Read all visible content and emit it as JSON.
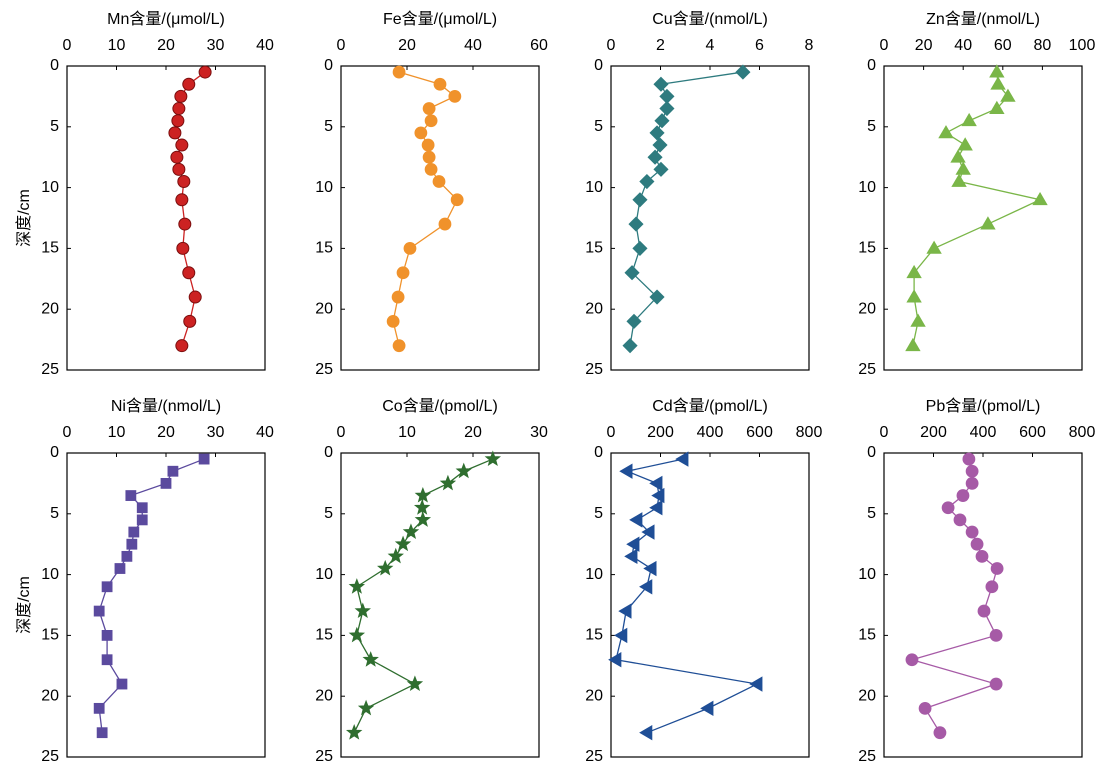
{
  "chart_data": [
    {
      "type": "line",
      "title": "Mn含量/(μmol/L)",
      "ylabel": "深度/cm",
      "color": "#cc2222",
      "marker": "sphere",
      "x": [
        27.9,
        24.6,
        23,
        22.6,
        22.4,
        21.8,
        23.2,
        22.2,
        22.6,
        23.6,
        23.2,
        23.8,
        23.4,
        24.6,
        25.9,
        24.8,
        23.2
      ],
      "y": [
        0.5,
        1.5,
        2.5,
        3.5,
        4.5,
        5.5,
        6.5,
        7.5,
        8.5,
        9.5,
        11,
        13,
        15,
        17,
        19,
        21,
        23
      ],
      "xlim": [
        0,
        40
      ],
      "xticks": [
        0,
        10,
        20,
        30,
        40
      ],
      "ylim": [
        0,
        25
      ],
      "yticks": [
        0,
        5,
        10,
        15,
        20,
        25
      ]
    },
    {
      "type": "line",
      "title": "Fe含量/(μmol/L)",
      "color": "#f0922b",
      "marker": "circle",
      "x": [
        17.6,
        30,
        34.5,
        26.7,
        27.3,
        24.2,
        26.4,
        26.7,
        27.3,
        29.7,
        35.2,
        31.5,
        20.9,
        18.8,
        17.3,
        15.8,
        17.6
      ],
      "y": [
        0.5,
        1.5,
        2.5,
        3.5,
        4.5,
        5.5,
        6.5,
        7.5,
        8.5,
        9.5,
        11,
        13,
        15,
        17,
        19,
        21,
        23
      ],
      "xlim": [
        0,
        60
      ],
      "xticks": [
        0,
        20,
        40,
        60
      ],
      "ylim": [
        0,
        25
      ],
      "yticks": [
        0,
        5,
        10,
        15,
        20,
        25
      ]
    },
    {
      "type": "line",
      "title": "Cu含量/(nmol/L)",
      "color": "#2e7b7f",
      "marker": "diamond",
      "x": [
        5.33,
        2.02,
        2.26,
        2.26,
        2.06,
        1.86,
        1.98,
        1.78,
        2.02,
        1.45,
        1.17,
        1.01,
        1.17,
        0.85,
        1.86,
        0.93,
        0.77
      ],
      "y": [
        0.5,
        1.5,
        2.5,
        3.5,
        4.5,
        5.5,
        6.5,
        7.5,
        8.5,
        9.5,
        11,
        13,
        15,
        17,
        19,
        21,
        23
      ],
      "xlim": [
        0,
        8
      ],
      "xticks": [
        0,
        2,
        4,
        6,
        8
      ],
      "ylim": [
        0,
        25
      ],
      "yticks": [
        0,
        5,
        10,
        15,
        20,
        25
      ]
    },
    {
      "type": "line",
      "title": "Zn含量/(nmol/L)",
      "color": "#7ab648",
      "marker": "triangle-up",
      "x": [
        57,
        57.6,
        62.6,
        57,
        43,
        31.3,
        41,
        37.4,
        40,
        37.9,
        78.8,
        52.5,
        25.3,
        15.2,
        15.2,
        17.2,
        14.6
      ],
      "y": [
        0.5,
        1.5,
        2.5,
        3.5,
        4.5,
        5.5,
        6.5,
        7.5,
        8.5,
        9.5,
        11,
        13,
        15,
        17,
        19,
        21,
        23
      ],
      "xlim": [
        0,
        100
      ],
      "xticks": [
        0,
        20,
        40,
        60,
        80,
        100
      ],
      "ylim": [
        0,
        25
      ],
      "yticks": [
        0,
        5,
        10,
        15,
        20,
        25
      ]
    },
    {
      "type": "line",
      "title": "Ni含量/(nmol/L)",
      "ylabel": "深度/cm",
      "color": "#5b4a9e",
      "marker": "square",
      "x": [
        27.7,
        21.4,
        20,
        12.9,
        15.2,
        15.2,
        13.5,
        13.1,
        12.1,
        10.7,
        8.1,
        6.5,
        8.1,
        8.1,
        11.1,
        6.5,
        7.1
      ],
      "y": [
        0.5,
        1.5,
        2.5,
        3.5,
        4.5,
        5.5,
        6.5,
        7.5,
        8.5,
        9.5,
        11,
        13,
        15,
        17,
        19,
        21,
        23
      ],
      "xlim": [
        0,
        40
      ],
      "xticks": [
        0,
        10,
        20,
        30,
        40
      ],
      "ylim": [
        0,
        25
      ],
      "yticks": [
        0,
        5,
        10,
        15,
        20,
        25
      ]
    },
    {
      "type": "line",
      "title": "Co含量/(pmol/L)",
      "color": "#2f6e2f",
      "marker": "star",
      "x": [
        23,
        18.6,
        16.2,
        12.4,
        12.3,
        12.4,
        10.6,
        9.4,
        8.3,
        6.7,
        2.4,
        3.3,
        2.4,
        4.5,
        11.2,
        3.8,
        2.0
      ],
      "y": [
        0.5,
        1.5,
        2.5,
        3.5,
        4.5,
        5.5,
        6.5,
        7.5,
        8.5,
        9.5,
        11,
        13,
        15,
        17,
        19,
        21,
        23
      ],
      "xlim": [
        0,
        30
      ],
      "xticks": [
        0,
        10,
        20,
        30
      ],
      "ylim": [
        0,
        25
      ],
      "yticks": [
        0,
        5,
        10,
        15,
        20,
        25
      ]
    },
    {
      "type": "line",
      "title": "Cd含量/(pmol/L)",
      "color": "#1f4e96",
      "marker": "triangle-left",
      "x": [
        291,
        65,
        186,
        194,
        186,
        105,
        154,
        93,
        85,
        162,
        145,
        61,
        44,
        20,
        590,
        392,
        145
      ],
      "y": [
        0.5,
        1.5,
        2.5,
        3.5,
        4.5,
        5.5,
        6.5,
        7.5,
        8.5,
        9.5,
        11,
        13,
        15,
        17,
        19,
        21,
        23
      ],
      "xlim": [
        0,
        800
      ],
      "xticks": [
        0,
        200,
        400,
        600,
        800
      ],
      "ylim": [
        0,
        25
      ],
      "yticks": [
        0,
        5,
        10,
        15,
        20,
        25
      ]
    },
    {
      "type": "line",
      "title": "Pb含量/(pmol/L)",
      "color": "#a65aa6",
      "marker": "circle",
      "x": [
        343,
        356,
        356,
        319,
        259,
        307,
        356,
        376,
        396,
        457,
        436,
        404,
        453,
        113,
        453,
        166,
        226
      ],
      "y": [
        0.5,
        1.5,
        2.5,
        3.5,
        4.5,
        5.5,
        6.5,
        7.5,
        8.5,
        9.5,
        11,
        13,
        15,
        17,
        19,
        21,
        23
      ],
      "xlim": [
        0,
        800
      ],
      "xticks": [
        0,
        200,
        400,
        600,
        800
      ],
      "ylim": [
        0,
        25
      ],
      "yticks": [
        0,
        5,
        10,
        15,
        20,
        25
      ]
    }
  ]
}
